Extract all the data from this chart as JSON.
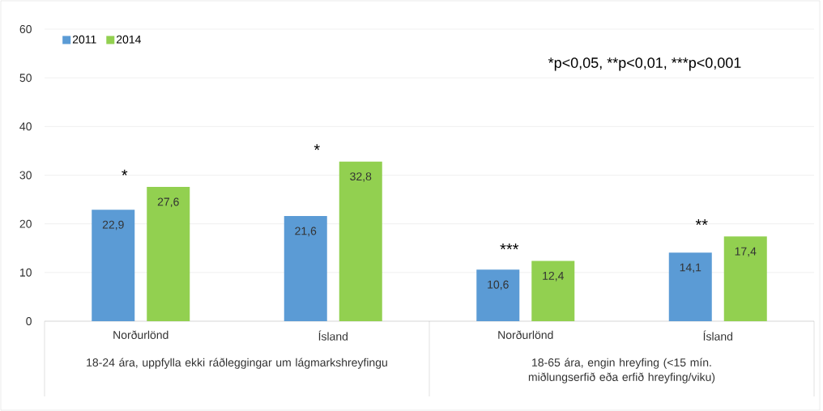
{
  "chart_data": {
    "type": "bar",
    "categories": [
      "Norðurlönd",
      "Ísland",
      "Norðurlönd",
      "Ísland"
    ],
    "series": [
      {
        "name": "2011",
        "color": "#5b9bd5",
        "values": [
          22.9,
          21.6,
          10.6,
          14.1
        ],
        "value_labels": [
          "22,9",
          "21,6",
          "10,6",
          "14,1"
        ]
      },
      {
        "name": "2014",
        "color": "#92d050",
        "values": [
          27.6,
          32.8,
          12.4,
          17.4
        ],
        "value_labels": [
          "27,6",
          "32,8",
          "12,4",
          "17,4"
        ]
      }
    ],
    "ylim": [
      0,
      60
    ],
    "yticks": [
      0,
      10,
      20,
      30,
      40,
      50,
      60
    ],
    "grid": "y",
    "legend": "top left",
    "annotations": [
      "18-24 ára, uppfylla ekki ráðleggingar um lágmarkshreyfingu",
      "18-65 ára, engin hreyfing (<15 mín. miðlungserfið eða erfið hreyfing/viku)",
      "*p<0,05,",
      "**p<0,01,",
      "***p<0,001",
      "*",
      "*",
      "***",
      "**"
    ]
  }
}
